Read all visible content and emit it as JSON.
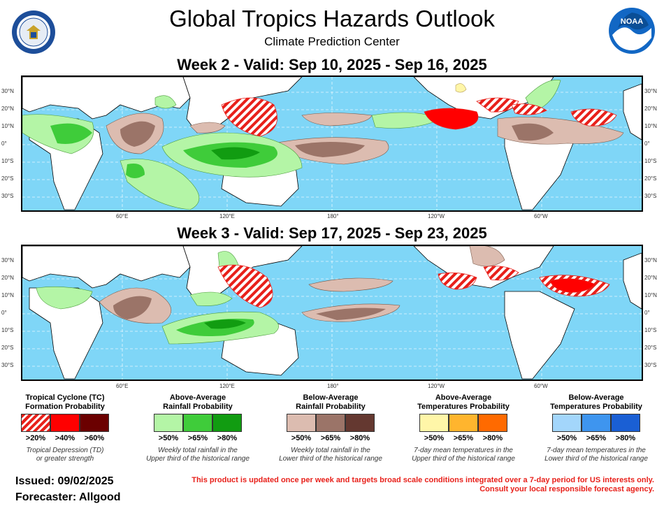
{
  "header": {
    "title": "Global Tropics Hazards Outlook",
    "subtitle": "Climate Prediction Center",
    "left_logo": "department-of-commerce-seal",
    "right_logo": "noaa-logo"
  },
  "maps": [
    {
      "title": "Week 2 - Valid: Sep 10, 2025 - Sep 16, 2025"
    },
    {
      "title": "Week 3 - Valid: Sep 17, 2025 - Sep 23, 2025"
    }
  ],
  "axes": {
    "lat_labels": [
      "30°N",
      "20°N",
      "10°N",
      "0°",
      "10°S",
      "20°S",
      "30°S"
    ],
    "lon_labels": [
      "60°E",
      "120°E",
      "180°",
      "120°W",
      "60°W"
    ]
  },
  "legend": [
    {
      "title_line1": "Tropical Cyclone (TC)",
      "title_line2": "Formation Probability",
      "colors": [
        "hatch",
        "#ff0000",
        "#6b0000"
      ],
      "labels": [
        ">20%",
        ">40%",
        ">60%"
      ],
      "desc_line1": "Tropical Depression (TD)",
      "desc_line2": "or greater strength"
    },
    {
      "title_line1": "Above-Average",
      "title_line2": "Rainfall Probability",
      "colors": [
        "#b4f5a6",
        "#3fcc3a",
        "#119c11"
      ],
      "labels": [
        ">50%",
        ">65%",
        ">80%"
      ],
      "desc_line1": "Weekly total rainfall in the",
      "desc_line2": "Upper third of the historical range"
    },
    {
      "title_line1": "Below-Average",
      "title_line2": "Rainfall Probability",
      "colors": [
        "#dcbcb0",
        "#9b7468",
        "#643830"
      ],
      "labels": [
        ">50%",
        ">65%",
        ">80%"
      ],
      "desc_line1": "Weekly total rainfall in the",
      "desc_line2": "Lower third of the historical range"
    },
    {
      "title_line1": "Above-Average",
      "title_line2": "Temperatures Probability",
      "colors": [
        "#fff6a8",
        "#ffb52e",
        "#ff6a00"
      ],
      "labels": [
        ">50%",
        ">65%",
        ">80%"
      ],
      "desc_line1": "7-day mean temperatures in the",
      "desc_line2": "Upper third of the historical range"
    },
    {
      "title_line1": "Below-Average",
      "title_line2": "Temperatures Probability",
      "colors": [
        "#a3d6fb",
        "#3e95ef",
        "#1a5fd4"
      ],
      "labels": [
        ">50%",
        ">65%",
        ">80%"
      ],
      "desc_line1": "7-day mean temperatures in the",
      "desc_line2": "Lower third of the historical range"
    }
  ],
  "footer": {
    "issued": "Issued: 09/02/2025",
    "forecaster": "Forecaster: Allgood",
    "notice_line1": "This product is updated once per week and targets broad scale conditions integrated over a 7-day period for US interests only.",
    "notice_line2": "Consult your local responsible forecast agency."
  }
}
